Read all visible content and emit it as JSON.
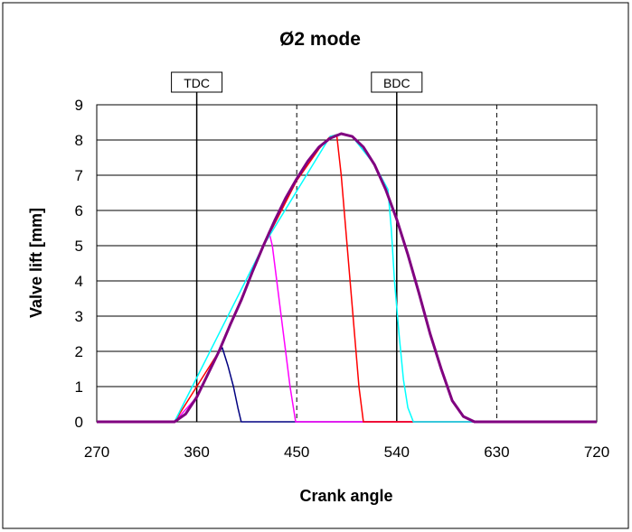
{
  "chart_data": {
    "type": "line",
    "title": "Ø2 mode",
    "xlabel": "Crank angle",
    "ylabel": "Valve lift [mm]",
    "xlim": [
      270,
      720
    ],
    "ylim": [
      0,
      9
    ],
    "xticks": [
      270,
      360,
      450,
      540,
      630,
      720
    ],
    "yticks": [
      0,
      1,
      2,
      3,
      4,
      5,
      6,
      7,
      8,
      9
    ],
    "grid": "horizontal solid, vertical dashed at 450 and 630",
    "legend": "none",
    "markers": [
      {
        "label": "TDC",
        "x": 360
      },
      {
        "label": "BDC",
        "x": 540
      }
    ],
    "series": [
      {
        "color": "#000080",
        "x": [
          270,
          340,
          350,
          360,
          370,
          380,
          383,
          388,
          393,
          397,
          400,
          450,
          500,
          610,
          720
        ],
        "y": [
          0,
          0,
          0.22,
          0.7,
          1.35,
          2.0,
          2.1,
          1.6,
          1.0,
          0.4,
          0,
          0,
          0,
          0,
          0
        ]
      },
      {
        "color": "#ff00ff",
        "x": [
          270,
          340,
          360,
          380,
          400,
          420,
          425,
          428,
          432,
          436,
          440,
          444,
          449,
          500,
          720
        ],
        "y": [
          0,
          0,
          0.7,
          2.0,
          3.45,
          5.0,
          5.4,
          5.0,
          4.0,
          3.0,
          2.0,
          1.0,
          0,
          0,
          0
        ]
      },
      {
        "color": "#ff0000",
        "x": [
          270,
          340,
          380,
          420,
          450,
          470,
          480,
          486,
          490,
          494,
          498,
          502,
          506,
          510,
          720
        ],
        "y": [
          0,
          0,
          2.0,
          5.0,
          6.85,
          7.75,
          8.1,
          8.15,
          7.0,
          5.5,
          4.0,
          2.5,
          1.0,
          0,
          0
        ]
      },
      {
        "color": "#00ffff",
        "x": [
          270,
          340,
          420,
          480,
          490,
          500,
          520,
          532,
          535,
          538,
          542,
          546,
          550,
          555,
          720
        ],
        "y": [
          0,
          0,
          5.0,
          8.1,
          8.18,
          8.1,
          7.3,
          6.6,
          5.5,
          4.0,
          2.5,
          1.2,
          0.4,
          0,
          0
        ]
      },
      {
        "color": "#800080",
        "x": [
          270,
          340,
          350,
          360,
          370,
          380,
          390,
          400,
          410,
          420,
          430,
          440,
          450,
          460,
          470,
          480,
          490,
          500,
          510,
          520,
          530,
          540,
          550,
          560,
          570,
          580,
          590,
          600,
          610,
          620,
          720
        ],
        "y": [
          0,
          0,
          0.22,
          0.7,
          1.35,
          2.0,
          2.75,
          3.45,
          4.25,
          5.0,
          5.7,
          6.35,
          6.9,
          7.4,
          7.8,
          8.05,
          8.18,
          8.1,
          7.8,
          7.3,
          6.6,
          5.75,
          4.75,
          3.65,
          2.5,
          1.5,
          0.6,
          0.15,
          0,
          0,
          0
        ]
      }
    ]
  }
}
